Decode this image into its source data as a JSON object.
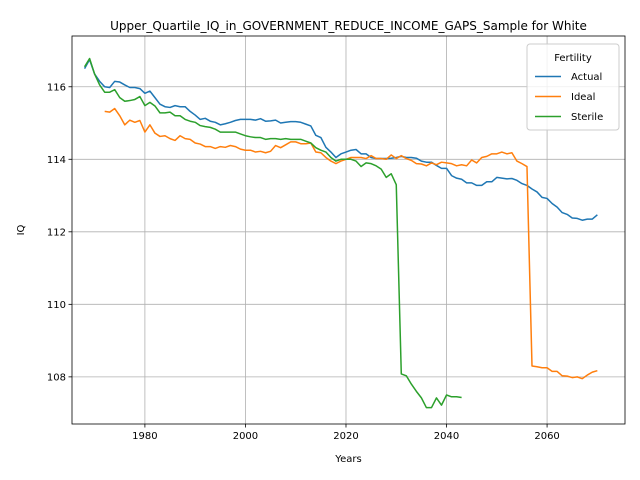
{
  "chart_data": {
    "type": "line",
    "title": "Upper_Quartile_IQ_in_GOVERNMENT_REDUCE_INCOME_GAPS_Sample for White",
    "xlabel": "Years",
    "ylabel": "IQ",
    "xlim": [
      1965.5,
      2075.5
    ],
    "ylim": [
      106.7,
      117.4
    ],
    "xticks": [
      1980,
      2000,
      2020,
      2040,
      2060
    ],
    "yticks": [
      108,
      110,
      112,
      114,
      116
    ],
    "grid": true,
    "legend": {
      "title": "Fertility",
      "placement": "top-right"
    },
    "series": [
      {
        "name": "Actual",
        "color": "#1f77b4",
        "points": [
          [
            1968,
            116.5
          ],
          [
            1969,
            116.75
          ],
          [
            1970,
            116.35
          ],
          [
            1971,
            116.15
          ],
          [
            1972,
            116.0
          ],
          [
            1973,
            115.98
          ],
          [
            1974,
            116.15
          ],
          [
            1975,
            116.13
          ],
          [
            1976,
            116.05
          ],
          [
            1977,
            115.98
          ],
          [
            1978,
            115.98
          ],
          [
            1979,
            115.95
          ],
          [
            1980,
            115.82
          ],
          [
            1981,
            115.88
          ],
          [
            1982,
            115.7
          ],
          [
            1983,
            115.52
          ],
          [
            1984,
            115.45
          ],
          [
            1985,
            115.43
          ],
          [
            1986,
            115.48
          ],
          [
            1987,
            115.45
          ],
          [
            1988,
            115.45
          ],
          [
            1989,
            115.32
          ],
          [
            1990,
            115.22
          ],
          [
            1991,
            115.1
          ],
          [
            1992,
            115.13
          ],
          [
            1993,
            115.05
          ],
          [
            1994,
            115.02
          ],
          [
            1995,
            114.95
          ],
          [
            1996,
            114.98
          ],
          [
            1997,
            115.02
          ],
          [
            1998,
            115.07
          ],
          [
            1999,
            115.1
          ],
          [
            2000,
            115.1
          ],
          [
            2001,
            115.1
          ],
          [
            2002,
            115.08
          ],
          [
            2003,
            115.12
          ],
          [
            2004,
            115.05
          ],
          [
            2005,
            115.06
          ],
          [
            2006,
            115.08
          ],
          [
            2007,
            115.0
          ],
          [
            2008,
            115.02
          ],
          [
            2009,
            115.04
          ],
          [
            2010,
            115.04
          ],
          [
            2011,
            115.02
          ],
          [
            2012,
            114.97
          ],
          [
            2013,
            114.92
          ],
          [
            2014,
            114.66
          ],
          [
            2015,
            114.6
          ],
          [
            2016,
            114.33
          ],
          [
            2017,
            114.2
          ],
          [
            2018,
            114.05
          ],
          [
            2019,
            114.15
          ],
          [
            2020,
            114.2
          ],
          [
            2021,
            114.25
          ],
          [
            2022,
            114.27
          ],
          [
            2023,
            114.15
          ],
          [
            2024,
            114.15
          ],
          [
            2025,
            114.05
          ],
          [
            2026,
            114.02
          ],
          [
            2027,
            114.02
          ],
          [
            2028,
            114.02
          ],
          [
            2029,
            114.03
          ],
          [
            2030,
            114.05
          ],
          [
            2031,
            114.08
          ],
          [
            2032,
            114.05
          ],
          [
            2033,
            114.05
          ],
          [
            2034,
            114.03
          ],
          [
            2035,
            113.95
          ],
          [
            2036,
            113.92
          ],
          [
            2037,
            113.92
          ],
          [
            2038,
            113.83
          ],
          [
            2039,
            113.75
          ],
          [
            2040,
            113.75
          ],
          [
            2041,
            113.55
          ],
          [
            2042,
            113.48
          ],
          [
            2043,
            113.45
          ],
          [
            2044,
            113.35
          ],
          [
            2045,
            113.35
          ],
          [
            2046,
            113.28
          ],
          [
            2047,
            113.28
          ],
          [
            2048,
            113.38
          ],
          [
            2049,
            113.38
          ],
          [
            2050,
            113.5
          ],
          [
            2051,
            113.48
          ],
          [
            2052,
            113.46
          ],
          [
            2053,
            113.47
          ],
          [
            2054,
            113.42
          ],
          [
            2055,
            113.33
          ],
          [
            2056,
            113.28
          ],
          [
            2057,
            113.18
          ],
          [
            2058,
            113.1
          ],
          [
            2059,
            112.95
          ],
          [
            2060,
            112.92
          ],
          [
            2061,
            112.78
          ],
          [
            2062,
            112.68
          ],
          [
            2063,
            112.53
          ],
          [
            2064,
            112.48
          ],
          [
            2065,
            112.38
          ],
          [
            2066,
            112.37
          ],
          [
            2067,
            112.32
          ],
          [
            2068,
            112.35
          ],
          [
            2069,
            112.35
          ],
          [
            2070,
            112.47
          ]
        ]
      },
      {
        "name": "Ideal",
        "color": "#ff7f0e",
        "points": [
          [
            1972,
            115.32
          ],
          [
            1973,
            115.3
          ],
          [
            1974,
            115.4
          ],
          [
            1975,
            115.2
          ],
          [
            1976,
            114.95
          ],
          [
            1977,
            115.08
          ],
          [
            1978,
            115.02
          ],
          [
            1979,
            115.07
          ],
          [
            1980,
            114.75
          ],
          [
            1981,
            114.95
          ],
          [
            1982,
            114.72
          ],
          [
            1983,
            114.63
          ],
          [
            1984,
            114.65
          ],
          [
            1985,
            114.57
          ],
          [
            1986,
            114.52
          ],
          [
            1987,
            114.65
          ],
          [
            1988,
            114.57
          ],
          [
            1989,
            114.55
          ],
          [
            1990,
            114.45
          ],
          [
            1991,
            114.42
          ],
          [
            1992,
            114.35
          ],
          [
            1993,
            114.35
          ],
          [
            1994,
            114.3
          ],
          [
            1995,
            114.35
          ],
          [
            1996,
            114.33
          ],
          [
            1997,
            114.38
          ],
          [
            1998,
            114.35
          ],
          [
            1999,
            114.28
          ],
          [
            2000,
            114.25
          ],
          [
            2001,
            114.25
          ],
          [
            2002,
            114.2
          ],
          [
            2003,
            114.22
          ],
          [
            2004,
            114.18
          ],
          [
            2005,
            114.22
          ],
          [
            2006,
            114.38
          ],
          [
            2007,
            114.32
          ],
          [
            2008,
            114.4
          ],
          [
            2009,
            114.48
          ],
          [
            2010,
            114.48
          ],
          [
            2011,
            114.43
          ],
          [
            2012,
            114.43
          ],
          [
            2013,
            114.45
          ],
          [
            2014,
            114.2
          ],
          [
            2015,
            114.18
          ],
          [
            2016,
            114.05
          ],
          [
            2017,
            113.95
          ],
          [
            2018,
            113.88
          ],
          [
            2019,
            113.95
          ],
          [
            2020,
            114.0
          ],
          [
            2021,
            114.05
          ],
          [
            2022,
            114.05
          ],
          [
            2023,
            114.05
          ],
          [
            2024,
            114.02
          ],
          [
            2025,
            114.1
          ],
          [
            2026,
            114.02
          ],
          [
            2027,
            114.02
          ],
          [
            2028,
            114.0
          ],
          [
            2029,
            114.12
          ],
          [
            2030,
            114.02
          ],
          [
            2031,
            114.1
          ],
          [
            2032,
            114.02
          ],
          [
            2033,
            113.97
          ],
          [
            2034,
            113.88
          ],
          [
            2035,
            113.87
          ],
          [
            2036,
            113.82
          ],
          [
            2037,
            113.9
          ],
          [
            2038,
            113.85
          ],
          [
            2039,
            113.92
          ],
          [
            2040,
            113.9
          ],
          [
            2041,
            113.88
          ],
          [
            2042,
            113.82
          ],
          [
            2043,
            113.85
          ],
          [
            2044,
            113.82
          ],
          [
            2045,
            113.98
          ],
          [
            2046,
            113.9
          ],
          [
            2047,
            114.05
          ],
          [
            2048,
            114.08
          ],
          [
            2049,
            114.15
          ],
          [
            2050,
            114.15
          ],
          [
            2051,
            114.2
          ],
          [
            2052,
            114.15
          ],
          [
            2053,
            114.18
          ],
          [
            2054,
            113.95
          ],
          [
            2055,
            113.88
          ],
          [
            2056,
            113.8
          ],
          [
            2057,
            108.3
          ],
          [
            2058,
            108.28
          ],
          [
            2059,
            108.25
          ],
          [
            2060,
            108.25
          ],
          [
            2061,
            108.15
          ],
          [
            2062,
            108.15
          ],
          [
            2063,
            108.03
          ],
          [
            2064,
            108.02
          ],
          [
            2065,
            107.98
          ],
          [
            2066,
            108.0
          ],
          [
            2067,
            107.95
          ],
          [
            2068,
            108.05
          ],
          [
            2069,
            108.13
          ],
          [
            2070,
            108.17
          ]
        ]
      },
      {
        "name": "Sterile",
        "color": "#2ca02c",
        "points": [
          [
            1968,
            116.55
          ],
          [
            1969,
            116.78
          ],
          [
            1970,
            116.35
          ],
          [
            1971,
            116.05
          ],
          [
            1972,
            115.85
          ],
          [
            1973,
            115.85
          ],
          [
            1974,
            115.92
          ],
          [
            1975,
            115.7
          ],
          [
            1976,
            115.6
          ],
          [
            1977,
            115.62
          ],
          [
            1978,
            115.65
          ],
          [
            1979,
            115.73
          ],
          [
            1980,
            115.48
          ],
          [
            1981,
            115.57
          ],
          [
            1982,
            115.47
          ],
          [
            1983,
            115.28
          ],
          [
            1984,
            115.28
          ],
          [
            1985,
            115.3
          ],
          [
            1986,
            115.2
          ],
          [
            1987,
            115.2
          ],
          [
            1988,
            115.1
          ],
          [
            1989,
            115.05
          ],
          [
            1990,
            115.02
          ],
          [
            1991,
            114.93
          ],
          [
            1992,
            114.9
          ],
          [
            1993,
            114.88
          ],
          [
            1994,
            114.83
          ],
          [
            1995,
            114.75
          ],
          [
            1996,
            114.75
          ],
          [
            1997,
            114.75
          ],
          [
            1998,
            114.75
          ],
          [
            1999,
            114.7
          ],
          [
            2000,
            114.65
          ],
          [
            2001,
            114.62
          ],
          [
            2002,
            114.6
          ],
          [
            2003,
            114.6
          ],
          [
            2004,
            114.55
          ],
          [
            2005,
            114.57
          ],
          [
            2006,
            114.57
          ],
          [
            2007,
            114.55
          ],
          [
            2008,
            114.57
          ],
          [
            2009,
            114.55
          ],
          [
            2010,
            114.55
          ],
          [
            2011,
            114.55
          ],
          [
            2012,
            114.5
          ],
          [
            2013,
            114.45
          ],
          [
            2014,
            114.32
          ],
          [
            2015,
            114.25
          ],
          [
            2016,
            114.2
          ],
          [
            2017,
            114.05
          ],
          [
            2018,
            113.95
          ],
          [
            2019,
            114.0
          ],
          [
            2020,
            114.0
          ],
          [
            2021,
            114.0
          ],
          [
            2022,
            113.95
          ],
          [
            2023,
            113.8
          ],
          [
            2024,
            113.9
          ],
          [
            2025,
            113.88
          ],
          [
            2026,
            113.82
          ],
          [
            2027,
            113.73
          ],
          [
            2028,
            113.5
          ],
          [
            2029,
            113.6
          ],
          [
            2030,
            113.3
          ],
          [
            2031,
            108.08
          ],
          [
            2032,
            108.03
          ],
          [
            2033,
            107.8
          ],
          [
            2034,
            107.6
          ],
          [
            2035,
            107.42
          ],
          [
            2036,
            107.15
          ],
          [
            2037,
            107.15
          ],
          [
            2038,
            107.42
          ],
          [
            2039,
            107.22
          ],
          [
            2040,
            107.5
          ],
          [
            2041,
            107.45
          ],
          [
            2042,
            107.45
          ],
          [
            2043,
            107.43
          ]
        ]
      }
    ]
  }
}
